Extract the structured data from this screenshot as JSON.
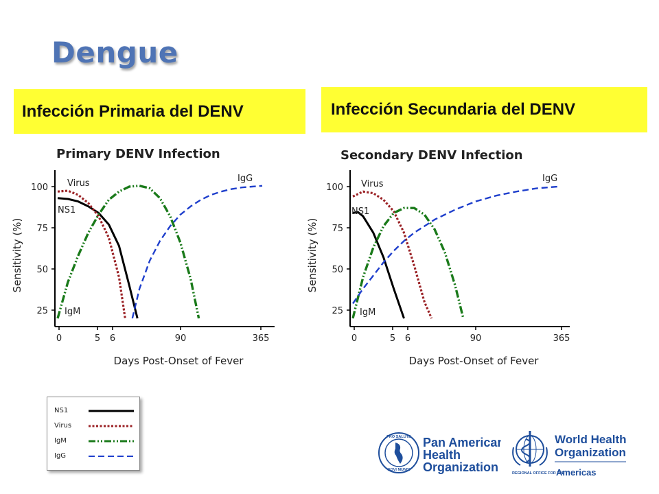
{
  "slide": {
    "title": "Dengue",
    "banner_left": "Infección Primaria del DENV",
    "banner_right": "Infección Secundaria del DENV"
  },
  "chart_data": [
    {
      "type": "line",
      "title": "Primary DENV Infection",
      "xlabel": "Days Post-Onset of Fever",
      "ylabel": "Sensitivity (%)",
      "x_ticks": [
        "0",
        "5",
        "6",
        "90",
        "365"
      ],
      "y_ticks": [
        100,
        75,
        50,
        25
      ],
      "series": [
        {
          "name": "NS1",
          "color": "#000000",
          "style": "solid",
          "points": [
            [
              0,
              93
            ],
            [
              1,
              92.5
            ],
            [
              2,
              91
            ],
            [
              3,
              88
            ],
            [
              4,
              84
            ],
            [
              5,
              77
            ],
            [
              6,
              64
            ],
            [
              7,
              40
            ],
            [
              7.8,
              20
            ]
          ]
        },
        {
          "name": "Virus",
          "color": "#9b2226",
          "style": "dotted",
          "points": [
            [
              0,
              97
            ],
            [
              1,
              97.5
            ],
            [
              2,
              95
            ],
            [
              3,
              90
            ],
            [
              4,
              82
            ],
            [
              5,
              69
            ],
            [
              6,
              45
            ],
            [
              6.6,
              20
            ]
          ]
        },
        {
          "name": "IgM",
          "color": "#1a7a1a",
          "style": "dash-dot-dot",
          "points": [
            [
              0,
              20
            ],
            [
              1,
              42
            ],
            [
              2,
              58
            ],
            [
              3,
              72
            ],
            [
              4,
              83
            ],
            [
              5,
              92
            ],
            [
              6,
              97
            ],
            [
              7,
              100
            ],
            [
              8,
              100.5
            ],
            [
              9,
              99
            ],
            [
              10,
              93
            ],
            [
              11,
              82
            ],
            [
              12,
              66
            ],
            [
              13,
              44
            ],
            [
              13.8,
              20
            ]
          ]
        },
        {
          "name": "IgG",
          "color": "#1f3fcc",
          "style": "dashed",
          "points": [
            [
              7.3,
              20
            ],
            [
              8,
              38
            ],
            [
              9,
              55
            ],
            [
              10,
              67
            ],
            [
              11,
              76
            ],
            [
              12,
              83
            ],
            [
              13,
              88
            ],
            [
              14,
              92
            ],
            [
              15,
              95
            ],
            [
              16,
              97
            ],
            [
              17,
              98.5
            ],
            [
              18,
              99.5
            ],
            [
              19,
              100
            ],
            [
              20,
              100.5
            ]
          ]
        }
      ]
    },
    {
      "type": "line",
      "title": "Secondary DENV Infection",
      "xlabel": "Days Post-Onset of Fever",
      "ylabel": "Sensitivity (%)",
      "x_ticks": [
        "0",
        "5",
        "6",
        "90",
        "365"
      ],
      "y_ticks": [
        100,
        75,
        50,
        25
      ],
      "series": [
        {
          "name": "NS1",
          "color": "#000000",
          "style": "solid",
          "points": [
            [
              0,
              84
            ],
            [
              0.5,
              84.5
            ],
            [
              1,
              82
            ],
            [
              2,
              72
            ],
            [
              3,
              57
            ],
            [
              4,
              38
            ],
            [
              5,
              20
            ]
          ]
        },
        {
          "name": "Virus",
          "color": "#9b2226",
          "style": "dotted",
          "points": [
            [
              0,
              94
            ],
            [
              1,
              97
            ],
            [
              2,
              96
            ],
            [
              3,
              92
            ],
            [
              4,
              85
            ],
            [
              5,
              72
            ],
            [
              6,
              52
            ],
            [
              7,
              30
            ],
            [
              7.7,
              20
            ]
          ]
        },
        {
          "name": "IgM",
          "color": "#1a7a1a",
          "style": "dash-dot-dot",
          "points": [
            [
              0,
              20
            ],
            [
              1,
              45
            ],
            [
              2,
              63
            ],
            [
              3,
              76
            ],
            [
              4,
              84
            ],
            [
              5,
              87
            ],
            [
              6,
              87
            ],
            [
              7,
              83
            ],
            [
              8,
              74
            ],
            [
              9,
              60
            ],
            [
              10,
              40
            ],
            [
              10.8,
              20
            ]
          ]
        },
        {
          "name": "IgG",
          "color": "#1f3fcc",
          "style": "dashed",
          "points": [
            [
              0,
              29
            ],
            [
              1,
              38
            ],
            [
              2,
              46
            ],
            [
              3,
              54
            ],
            [
              4,
              61
            ],
            [
              5,
              67
            ],
            [
              6,
              72
            ],
            [
              8,
              80
            ],
            [
              10,
              86
            ],
            [
              12,
              91
            ],
            [
              14,
              94.5
            ],
            [
              16,
              97
            ],
            [
              18,
              99
            ],
            [
              20,
              100
            ]
          ]
        }
      ]
    }
  ],
  "curve_labels": {
    "ns1": "NS1",
    "virus": "Virus",
    "igm": "IgM",
    "igg": "IgG"
  },
  "legend": [
    {
      "label": "NS1",
      "color": "#000000",
      "style": "solid"
    },
    {
      "label": "Virus",
      "color": "#9b2226",
      "style": "dotted"
    },
    {
      "label": "IgM",
      "color": "#1a7a1a",
      "style": "dash-dot-dot"
    },
    {
      "label": "IgG",
      "color": "#1f3fcc",
      "style": "dashed"
    }
  ],
  "logos": {
    "paho_line1": "Pan American",
    "paho_line2": "Health",
    "paho_line3": "Organization",
    "paho_seal_top": "PRO SALUTE",
    "paho_seal_bottom": "NOVI MUNDI",
    "who_line1": "World Health",
    "who_line2": "Organization",
    "who_regional": "REGIONAL OFFICE FOR THE",
    "who_americas": "Americas",
    "brand_color": "#1e4e9c"
  }
}
